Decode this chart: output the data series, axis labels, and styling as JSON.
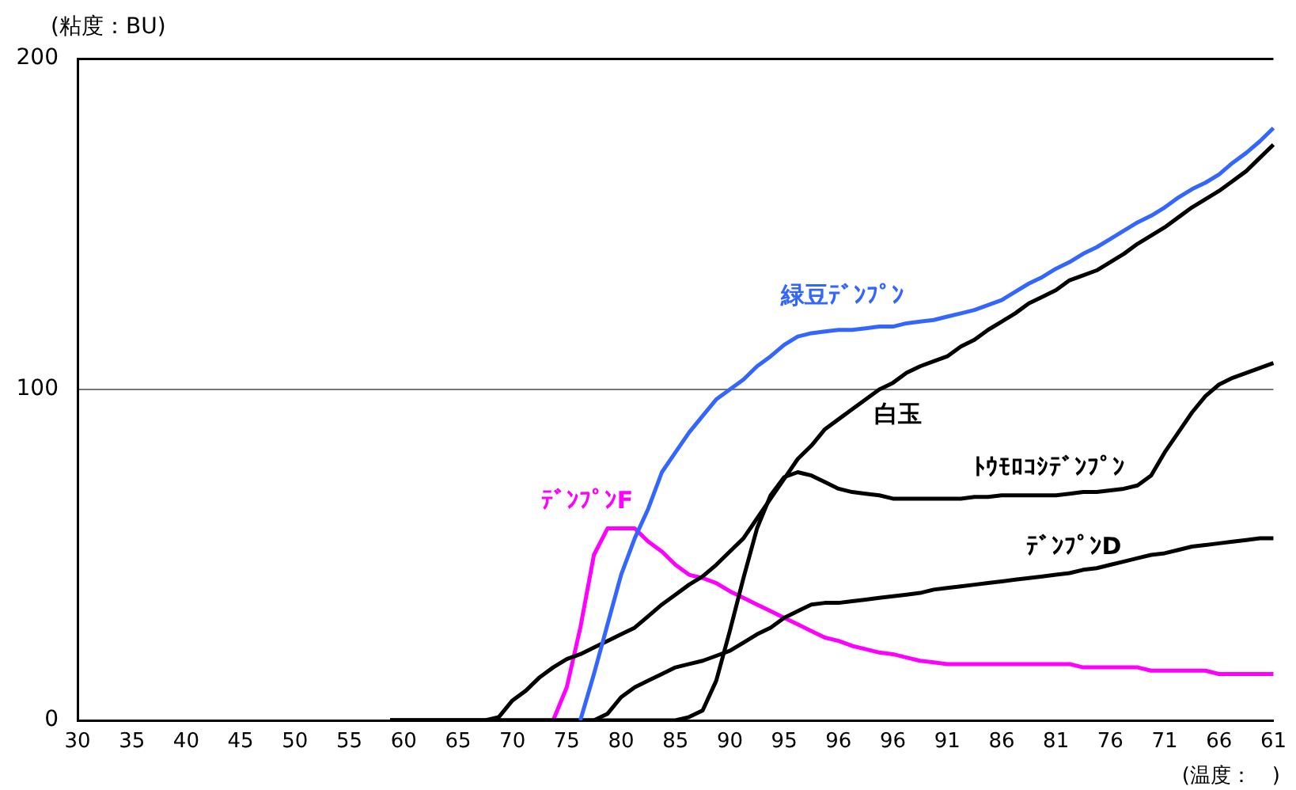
{
  "chart_data": {
    "type": "line",
    "ylabel": "(粘度：BU)",
    "xlabel": "(温度：　)",
    "categories": [
      "30",
      null,
      null,
      null,
      "35",
      null,
      null,
      null,
      "40",
      null,
      null,
      null,
      "45",
      null,
      null,
      null,
      "50",
      null,
      null,
      null,
      "55",
      null,
      null,
      null,
      "60",
      null,
      null,
      null,
      "65",
      null,
      null,
      null,
      "70",
      null,
      null,
      null,
      "75",
      null,
      null,
      null,
      "80",
      null,
      null,
      null,
      "85",
      null,
      null,
      null,
      "90",
      null,
      null,
      null,
      "95",
      null,
      null,
      null,
      "96",
      null,
      null,
      null,
      "96",
      null,
      null,
      null,
      "91",
      null,
      null,
      null,
      "86",
      null,
      null,
      null,
      "81",
      null,
      null,
      null,
      "76",
      null,
      null,
      null,
      "71",
      null,
      null,
      null,
      "66",
      null,
      null,
      null,
      "61"
    ],
    "series": [
      {
        "name": "緑豆ﾃﾞﾝﾌﾟﾝ",
        "color": "#3366ff",
        "values": [
          null,
          null,
          null,
          null,
          null,
          null,
          null,
          null,
          null,
          null,
          null,
          null,
          null,
          null,
          null,
          null,
          null,
          null,
          null,
          null,
          null,
          null,
          null,
          null,
          null,
          null,
          null,
          null,
          null,
          null,
          null,
          null,
          null,
          null,
          null,
          null,
          null,
          0,
          14,
          29,
          44,
          55,
          64,
          75,
          81,
          87,
          92,
          97,
          100,
          103,
          107,
          110,
          113.5,
          116,
          117,
          117.5,
          118,
          118,
          118.5,
          119,
          119,
          120,
          120.5,
          121,
          122,
          123,
          124,
          125.5,
          127,
          129.5,
          132,
          134,
          136.5,
          138.5,
          141,
          143,
          145.5,
          148,
          150.5,
          152.5,
          155,
          158,
          160.5,
          162.5,
          165,
          168.5,
          171.5,
          175,
          179
        ]
      },
      {
        "name": "白玉",
        "color": "#000000",
        "values": [
          null,
          null,
          null,
          null,
          null,
          null,
          null,
          null,
          null,
          null,
          null,
          null,
          null,
          null,
          null,
          null,
          null,
          null,
          null,
          null,
          null,
          null,
          null,
          0,
          0,
          0,
          0,
          0,
          0,
          0,
          0,
          1,
          6,
          9,
          13,
          16,
          18.5,
          20,
          22,
          24,
          26,
          28,
          31.5,
          35,
          38,
          41,
          43.5,
          47,
          51,
          55,
          61,
          67,
          73,
          79,
          83,
          88,
          91,
          94,
          97,
          100,
          102,
          105,
          107,
          108.5,
          110,
          113,
          115,
          118,
          120.5,
          123,
          126,
          128,
          130,
          133,
          134.5,
          136,
          138.5,
          141,
          144,
          146.5,
          149,
          152,
          155,
          157.5,
          160,
          163,
          166,
          170,
          174
        ]
      },
      {
        "name": "ﾄｳﾓﾛｺｼﾃﾞﾝﾌﾟﾝ",
        "color": "#000000",
        "values": [
          null,
          null,
          null,
          null,
          null,
          null,
          null,
          null,
          null,
          null,
          null,
          null,
          null,
          null,
          null,
          null,
          null,
          null,
          null,
          null,
          null,
          null,
          null,
          0,
          0,
          0,
          0,
          0,
          0,
          0,
          0,
          0,
          0,
          0,
          0,
          0,
          0,
          0,
          0,
          0,
          0,
          0,
          0,
          0,
          0,
          1,
          3,
          12,
          27,
          43,
          58,
          68,
          73.5,
          75,
          74,
          72,
          70,
          69,
          68.5,
          68,
          67,
          67,
          67,
          67,
          67,
          67,
          67.5,
          67.5,
          68,
          68,
          68,
          68,
          68,
          68.5,
          69,
          69,
          69.5,
          70,
          71,
          74,
          81,
          87,
          93,
          98,
          101.5,
          103.5,
          105,
          106.5,
          108
        ]
      },
      {
        "name": "ﾃﾞﾝﾌﾟﾝD",
        "color": "#000000",
        "values": [
          null,
          null,
          null,
          null,
          null,
          null,
          null,
          null,
          null,
          null,
          null,
          null,
          null,
          null,
          null,
          null,
          null,
          null,
          null,
          null,
          null,
          null,
          null,
          0,
          0,
          0,
          0,
          0,
          0,
          0,
          0,
          0,
          0,
          0,
          0,
          0,
          0,
          0,
          0,
          2,
          7,
          10,
          12,
          14,
          16,
          17,
          18,
          19.5,
          21,
          23.5,
          26,
          28,
          31,
          33,
          35,
          35.5,
          35.5,
          36,
          36.5,
          37,
          37.5,
          38,
          38.5,
          39.5,
          40,
          40.5,
          41,
          41.5,
          42,
          42.5,
          43,
          43.5,
          44,
          44.5,
          45.5,
          46,
          47,
          48,
          49,
          50,
          50.5,
          51.5,
          52.5,
          53,
          53.5,
          54,
          54.5,
          55,
          55
        ]
      },
      {
        "name": "ﾃﾞﾝﾌﾟﾝF",
        "color": "#ff00ff",
        "values": [
          null,
          null,
          null,
          null,
          null,
          null,
          null,
          null,
          null,
          null,
          null,
          null,
          null,
          null,
          null,
          null,
          null,
          null,
          null,
          null,
          null,
          null,
          null,
          null,
          null,
          null,
          null,
          null,
          null,
          null,
          null,
          null,
          null,
          null,
          null,
          0,
          10,
          28,
          50,
          58,
          58,
          58,
          54,
          51,
          47,
          44,
          43,
          41.5,
          39,
          37,
          35,
          33,
          31,
          29,
          27,
          25,
          24,
          22.5,
          21.5,
          20.5,
          20,
          19,
          18,
          17.5,
          17,
          17,
          17,
          17,
          17,
          17,
          17,
          17,
          17,
          17,
          16,
          16,
          16,
          16,
          16,
          15,
          15,
          15,
          15,
          15,
          14,
          14,
          14,
          14,
          14
        ]
      }
    ],
    "ylim": [
      0,
      200
    ],
    "yticks": [
      0,
      100,
      200
    ],
    "grid": "y",
    "legend": false,
    "marker": "none"
  }
}
